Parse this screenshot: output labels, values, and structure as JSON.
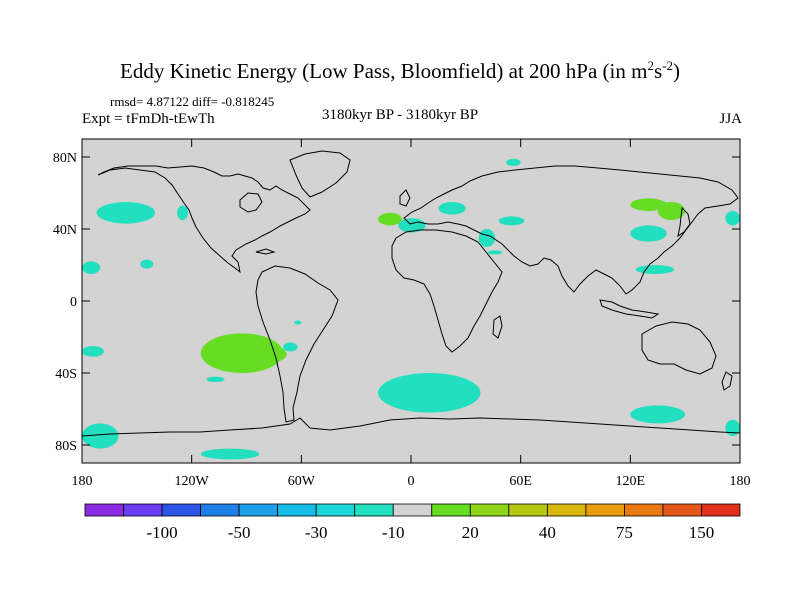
{
  "header": {
    "title_main": "Eddy Kinetic Energy (Low Pass, Bloomfield) at 200 hPa (in m",
    "title_sup1": "2",
    "title_mid": "s",
    "title_sup2": "-2",
    "title_end": ")",
    "stats": "rmsd= 4.87122 diff= -0.818245",
    "expt": "Expt = tFmDh-tEwTh",
    "period": "3180kyr BP - 3180kyr BP",
    "season": "JJA"
  },
  "colors": {
    "land_ocean_background": "#d3d3d3",
    "coastline": "#000000",
    "positive_anomaly": "#66dd22",
    "negative_anomaly": "#22dfc0"
  },
  "chart_data": {
    "type": "heatmap",
    "map_projection": "cylindrical equidistant",
    "lon_range": [
      -180,
      180
    ],
    "lat_range": [
      -90,
      90
    ],
    "x_ticks": [
      "180",
      "120W",
      "60W",
      "0",
      "60E",
      "120E",
      "180"
    ],
    "y_ticks": [
      "80N",
      "40N",
      "0",
      "40S",
      "80S"
    ],
    "grid": false,
    "colorbar": {
      "orientation": "horizontal",
      "placement": "bottom",
      "labels": [
        "-100",
        "-50",
        "-30",
        "-10",
        "20",
        "40",
        "75",
        "150"
      ],
      "colors": [
        "#8a2be2",
        "#6a3df0",
        "#2b55e6",
        "#1f7fe8",
        "#1ca0e8",
        "#16bde6",
        "#1ad6d6",
        "#22dfc0",
        "#d3d3d3",
        "#66dd22",
        "#8fd417",
        "#b4c813",
        "#d8b80e",
        "#e89c10",
        "#e87810",
        "#e5561a",
        "#e0301a"
      ]
    },
    "regions": [
      {
        "sign": "negative",
        "lon": [
          -172,
          -140
        ],
        "lat": [
          43,
          55
        ]
      },
      {
        "sign": "negative",
        "lon": [
          -128,
          -122
        ],
        "lat": [
          45,
          53
        ]
      },
      {
        "sign": "negative",
        "lon": [
          -180,
          -170
        ],
        "lat": [
          15,
          22
        ]
      },
      {
        "sign": "negative",
        "lon": [
          -148,
          -141
        ],
        "lat": [
          18,
          23
        ]
      },
      {
        "sign": "negative",
        "lon": [
          -64,
          -60
        ],
        "lat": [
          -13,
          -11
        ]
      },
      {
        "sign": "negative",
        "lon": [
          -180,
          -168
        ],
        "lat": [
          -31,
          -25
        ]
      },
      {
        "sign": "negative",
        "lon": [
          -70,
          -62
        ],
        "lat": [
          -28,
          -23
        ]
      },
      {
        "sign": "negative",
        "lon": [
          -112,
          -102
        ],
        "lat": [
          -45,
          -42
        ]
      },
      {
        "sign": "negative",
        "lon": [
          -180,
          -160
        ],
        "lat": [
          -82,
          -68
        ]
      },
      {
        "sign": "negative",
        "lon": [
          -115,
          -83
        ],
        "lat": [
          -88,
          -82
        ]
      },
      {
        "sign": "negative",
        "lon": [
          -18,
          38
        ],
        "lat": [
          -62,
          -40
        ]
      },
      {
        "sign": "negative",
        "lon": [
          -7,
          8
        ],
        "lat": [
          38,
          46
        ]
      },
      {
        "sign": "negative",
        "lon": [
          15,
          30
        ],
        "lat": [
          48,
          55
        ]
      },
      {
        "sign": "negative",
        "lon": [
          37,
          46
        ],
        "lat": [
          30,
          40
        ]
      },
      {
        "sign": "negative",
        "lon": [
          48,
          62
        ],
        "lat": [
          42,
          47
        ]
      },
      {
        "sign": "negative",
        "lon": [
          52,
          60
        ],
        "lat": [
          75,
          79
        ]
      },
      {
        "sign": "negative",
        "lon": [
          42,
          50
        ],
        "lat": [
          26,
          28
        ]
      },
      {
        "sign": "negative",
        "lon": [
          120,
          140
        ],
        "lat": [
          33,
          42
        ]
      },
      {
        "sign": "negative",
        "lon": [
          123,
          144
        ],
        "lat": [
          15,
          20
        ]
      },
      {
        "sign": "negative",
        "lon": [
          120,
          150
        ],
        "lat": [
          -68,
          -58
        ]
      },
      {
        "sign": "negative",
        "lon": [
          172,
          180
        ],
        "lat": [
          42,
          50
        ]
      },
      {
        "sign": "negative",
        "lon": [
          172,
          180
        ],
        "lat": [
          -75,
          -66
        ]
      },
      {
        "sign": "positive",
        "lon": [
          -115,
          -70
        ],
        "lat": [
          -40,
          -18
        ]
      },
      {
        "sign": "positive",
        "lon": [
          -85,
          -68
        ],
        "lat": [
          -34,
          -25
        ]
      },
      {
        "sign": "positive",
        "lon": [
          -18,
          -5
        ],
        "lat": [
          42,
          49
        ]
      },
      {
        "sign": "positive",
        "lon": [
          120,
          140
        ],
        "lat": [
          50,
          57
        ]
      },
      {
        "sign": "positive",
        "lon": [
          135,
          150
        ],
        "lat": [
          45,
          55
        ]
      }
    ]
  }
}
